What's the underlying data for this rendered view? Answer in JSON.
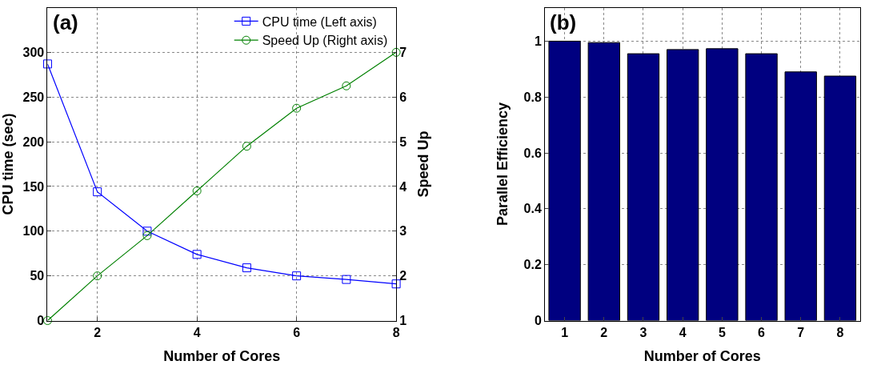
{
  "chart_data": [
    {
      "type": "line",
      "title": "(a)",
      "xlabel": "Number of Cores",
      "ylabel": "CPU time (sec)",
      "y2label": "Speed Up",
      "x": [
        1,
        2,
        3,
        4,
        5,
        6,
        7,
        8
      ],
      "series": [
        {
          "name": "CPU time (Left axis)",
          "color": "#0000ff",
          "marker": "square",
          "values": [
            287,
            144,
            100,
            74,
            59,
            50,
            46,
            41
          ]
        },
        {
          "name": "Speed Up (Right axis)",
          "color": "#008000",
          "marker": "circle",
          "axis": "y2",
          "values": [
            1,
            2,
            2.9,
            3.9,
            4.9,
            5.75,
            6.25,
            7
          ]
        }
      ],
      "xlim": [
        1,
        8
      ],
      "xticks": [
        2,
        4,
        6,
        8
      ],
      "ylim": [
        0,
        350
      ],
      "yticks": [
        0,
        50,
        100,
        150,
        200,
        250,
        300
      ],
      "y2lim": [
        1,
        8
      ],
      "y2ticks": [
        1,
        2,
        3,
        4,
        5,
        6,
        7
      ],
      "grid": true,
      "legend": "top right",
      "line_style": "solid"
    },
    {
      "type": "bar",
      "title": "(b)",
      "xlabel": "Number of Cores",
      "ylabel": "Parallel Efficiency",
      "categories": [
        "1",
        "2",
        "3",
        "4",
        "5",
        "6",
        "7",
        "8"
      ],
      "values": [
        1,
        0.995,
        0.955,
        0.97,
        0.973,
        0.955,
        0.89,
        0.875
      ],
      "color": "#000080",
      "ylim": [
        0,
        1.12
      ],
      "yticks": [
        0,
        0.2,
        0.4,
        0.6,
        0.8,
        1
      ],
      "grid": true
    }
  ]
}
